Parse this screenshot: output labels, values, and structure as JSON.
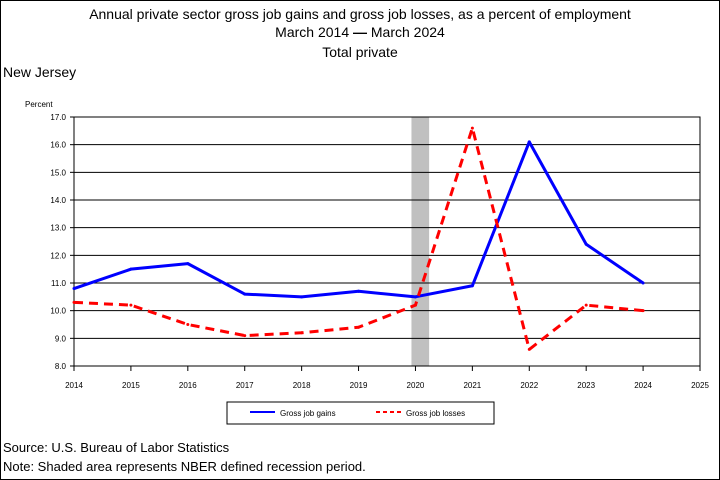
{
  "header": {
    "title": "Annual private sector gross job gains and gross job losses, as a percent of employment",
    "period_start": "March 2014",
    "period_end": "March 2024",
    "subtitle": "Total private",
    "state": "New Jersey"
  },
  "footer": {
    "source": "Source: U.S. Bureau of Labor Statistics",
    "note": "Note: Shaded area represents NBER defined recession period."
  },
  "chart_data": {
    "type": "line",
    "ylabel": "Percent",
    "xlabel": "",
    "xlim": [
      2014,
      2025
    ],
    "ylim": [
      8.0,
      17.0
    ],
    "x_ticks": [
      "2014",
      "2015",
      "2016",
      "2017",
      "2018",
      "2019",
      "2020",
      "2021",
      "2022",
      "2023",
      "2024",
      "2025"
    ],
    "y_ticks": [
      "8.0",
      "9.0",
      "10.0",
      "11.0",
      "12.0",
      "13.0",
      "14.0",
      "15.0",
      "16.0",
      "17.0"
    ],
    "grid": "horizontal",
    "recession": [
      2020,
      2020.17
    ],
    "legend_position": "bottom",
    "series": [
      {
        "name": "Gross job gains",
        "color": "#0000ff",
        "style": "solid",
        "x": [
          2014,
          2015,
          2016,
          2017,
          2018,
          2019,
          2020,
          2021,
          2022,
          2023,
          2024
        ],
        "values": [
          10.8,
          11.5,
          11.7,
          10.6,
          10.5,
          10.7,
          10.5,
          10.9,
          16.1,
          12.4,
          11.0
        ]
      },
      {
        "name": "Gross job losses",
        "color": "#ff0000",
        "style": "dashed",
        "x": [
          2014,
          2015,
          2016,
          2017,
          2018,
          2019,
          2020,
          2021,
          2022,
          2023,
          2024
        ],
        "values": [
          10.3,
          10.2,
          9.5,
          9.1,
          9.2,
          9.4,
          10.2,
          16.6,
          8.6,
          10.2,
          10.0
        ]
      }
    ]
  }
}
